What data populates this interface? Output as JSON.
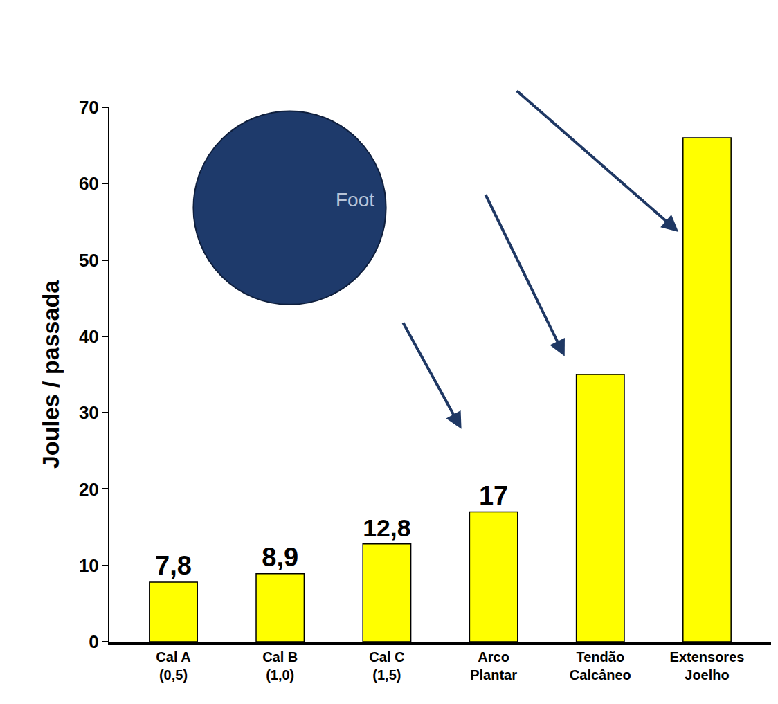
{
  "chart_data": {
    "type": "bar",
    "y_label": "Joules / passada",
    "categories": [
      "Cal A (0,5)",
      "Cal B (1,0)",
      "Cal C (1,5)",
      "Arco Plantar",
      "Tendão Calcâneo",
      "Extensores Joelho"
    ],
    "values": [
      7.8,
      8.9,
      12.8,
      17,
      35,
      66
    ],
    "value_labels": [
      "7,8",
      "8,9",
      "12,8",
      "17",
      null,
      null
    ],
    "data_labels": true,
    "color": "#ffff00",
    "ylim": [
      0,
      70
    ],
    "yticks": [
      0,
      10,
      20,
      30,
      40,
      50,
      60,
      70
    ],
    "grid": false,
    "annotations": [
      "Foot"
    ]
  }
}
